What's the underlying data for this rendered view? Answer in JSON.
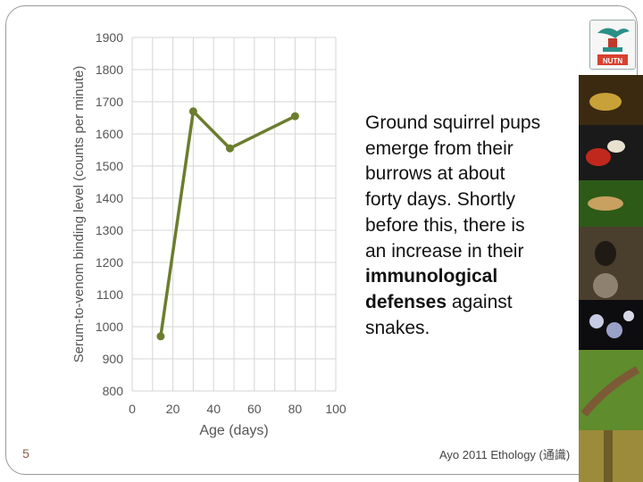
{
  "chart_data": {
    "type": "line",
    "title": "",
    "xlabel": "Age (days)",
    "ylabel": "Serum-to-venom binding level (counts per minute)",
    "xlim": [
      0,
      100
    ],
    "ylim": [
      800,
      1900
    ],
    "xticks": [
      0,
      20,
      40,
      60,
      80,
      100
    ],
    "yticks": [
      800,
      900,
      1000,
      1100,
      1200,
      1300,
      1400,
      1500,
      1600,
      1700,
      1800,
      1900
    ],
    "grid": true,
    "series": [
      {
        "color": "#6b7d2e",
        "points": [
          {
            "x": 14,
            "y": 970
          },
          {
            "x": 30,
            "y": 1670
          },
          {
            "x": 48,
            "y": 1555
          },
          {
            "x": 80,
            "y": 1655
          }
        ]
      }
    ]
  },
  "text": {
    "line1": "Ground squirrel pups",
    "line2": "emerge from their",
    "line3": "burrows at about",
    "line4": "forty days. Shortly",
    "line5": "before this, there is",
    "line6": "an increase in their",
    "bold1": "immunological",
    "bold2": "defenses",
    "line8_rest": " against",
    "line9": "snakes."
  },
  "slide_number": "5",
  "footer": "Ayo 2011 Ethology (通識)",
  "logo_text": "NUTN",
  "colors": {
    "line": "#6b7d2e",
    "grid": "#d6d6d6",
    "axis_text": "#555555"
  }
}
